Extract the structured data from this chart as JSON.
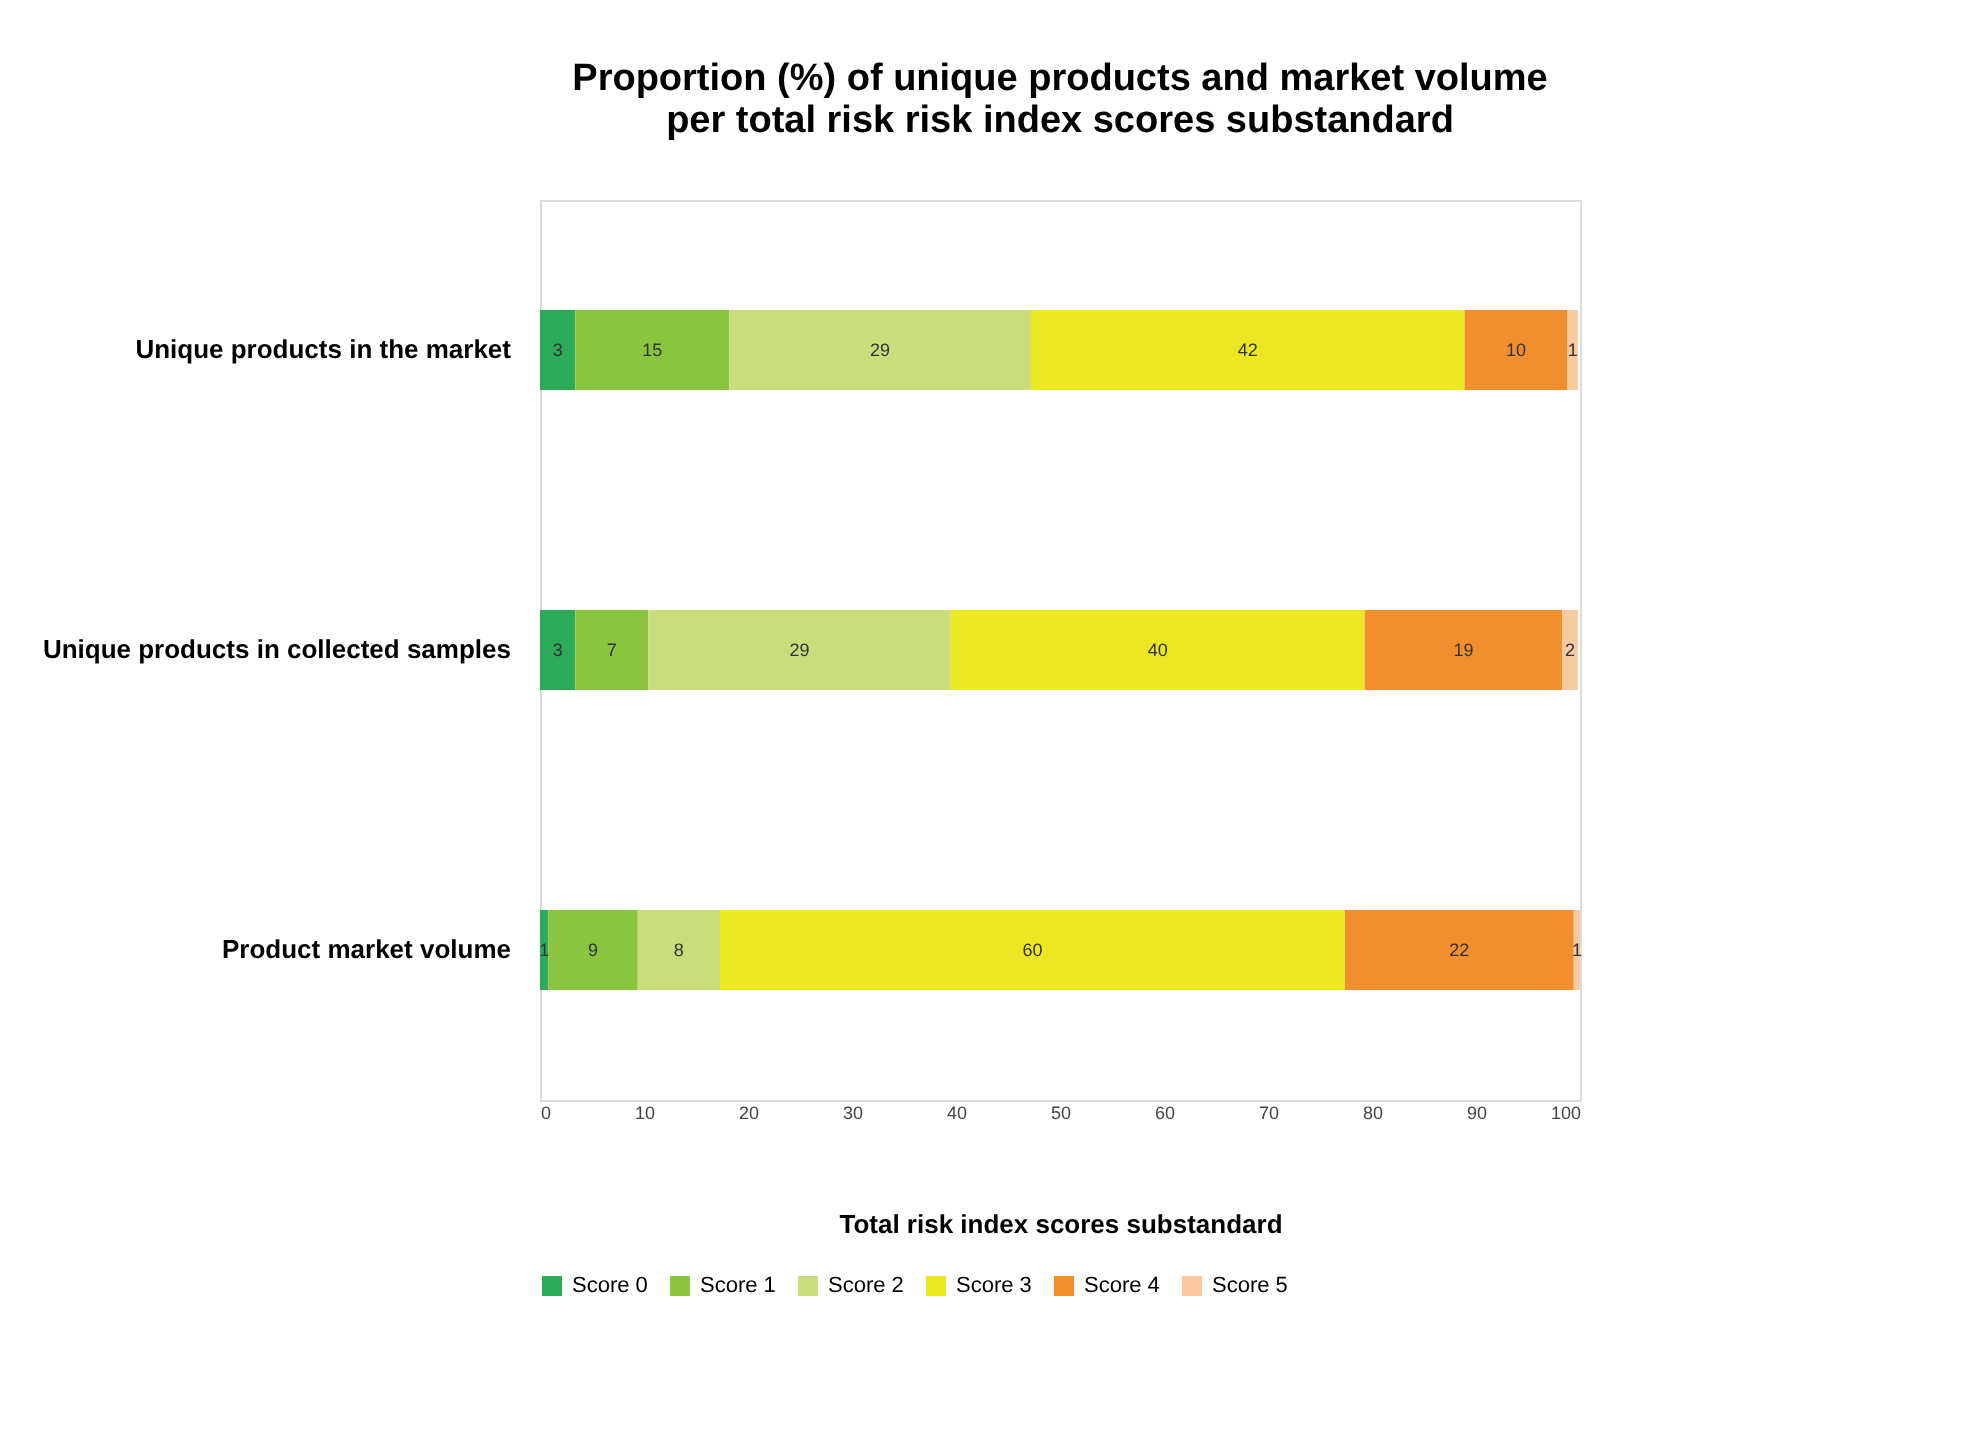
{
  "chart_data": {
    "type": "bar",
    "orientation": "horizontal",
    "stacked": true,
    "title": [
      "Proportion (%) of unique products and market volume",
      "per total risk risk index scores substandard"
    ],
    "xlabel": "Total risk index scores substandard",
    "categories": [
      "Unique products in the market",
      "Unique products in collected samples",
      "Product market volume"
    ],
    "xlim": [
      0,
      100
    ],
    "xticks": [
      0,
      10,
      20,
      30,
      40,
      50,
      60,
      70,
      80,
      90,
      100
    ],
    "grid": false,
    "legend": "bottom",
    "series": [
      {
        "name": "Score 0",
        "color": "#2daa5a",
        "values": [
          3.4,
          3.4,
          0.8
        ],
        "value_labels": [
          "3",
          "3",
          "1"
        ]
      },
      {
        "name": "Score 1",
        "color": "#8bc540",
        "values": [
          14.8,
          7,
          8.6
        ],
        "value_labels": [
          "15",
          "7",
          "9"
        ]
      },
      {
        "name": "Score 2",
        "color": "#c9dd7d",
        "values": [
          29,
          29.1,
          7.9
        ],
        "value_labels": [
          "29",
          "29",
          "8"
        ]
      },
      {
        "name": "Score 3",
        "color": "#ebe723",
        "values": [
          41.7,
          39.8,
          60.1
        ],
        "value_labels": [
          "42",
          "40",
          "60"
        ]
      },
      {
        "name": "Score 4",
        "color": "#f18f2f",
        "values": [
          9.9,
          19,
          22
        ],
        "value_labels": [
          "10",
          "19",
          "22"
        ]
      },
      {
        "name": "Score 5",
        "color": "#f9c9a2",
        "values": [
          1,
          1.5,
          0.6
        ],
        "value_labels": [
          "1",
          "2",
          "1"
        ]
      }
    ]
  }
}
